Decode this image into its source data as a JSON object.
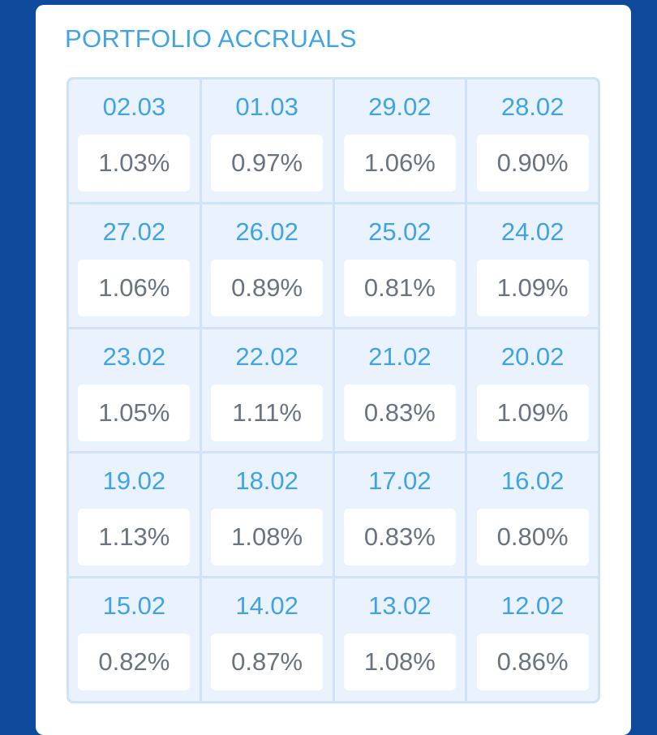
{
  "card": {
    "title": "PORTFOLIO ACCRUALS"
  },
  "accruals": [
    {
      "date": "02.03",
      "value": "1.03%"
    },
    {
      "date": "01.03",
      "value": "0.97%"
    },
    {
      "date": "29.02",
      "value": "1.06%"
    },
    {
      "date": "28.02",
      "value": "0.90%"
    },
    {
      "date": "27.02",
      "value": "1.06%"
    },
    {
      "date": "26.02",
      "value": "0.89%"
    },
    {
      "date": "25.02",
      "value": "0.81%"
    },
    {
      "date": "24.02",
      "value": "1.09%"
    },
    {
      "date": "23.02",
      "value": "1.05%"
    },
    {
      "date": "22.02",
      "value": "1.11%"
    },
    {
      "date": "21.02",
      "value": "0.83%"
    },
    {
      "date": "20.02",
      "value": "1.09%"
    },
    {
      "date": "19.02",
      "value": "1.13%"
    },
    {
      "date": "18.02",
      "value": "1.08%"
    },
    {
      "date": "17.02",
      "value": "0.83%"
    },
    {
      "date": "16.02",
      "value": "0.80%"
    },
    {
      "date": "15.02",
      "value": "0.82%"
    },
    {
      "date": "14.02",
      "value": "0.87%"
    },
    {
      "date": "13.02",
      "value": "1.08%"
    },
    {
      "date": "12.02",
      "value": "0.86%"
    }
  ],
  "colors": {
    "background": "#0f4a9c",
    "accent": "#3fa3e4",
    "cell_background": "#eaf3fd",
    "value_text": "#6b7280"
  }
}
